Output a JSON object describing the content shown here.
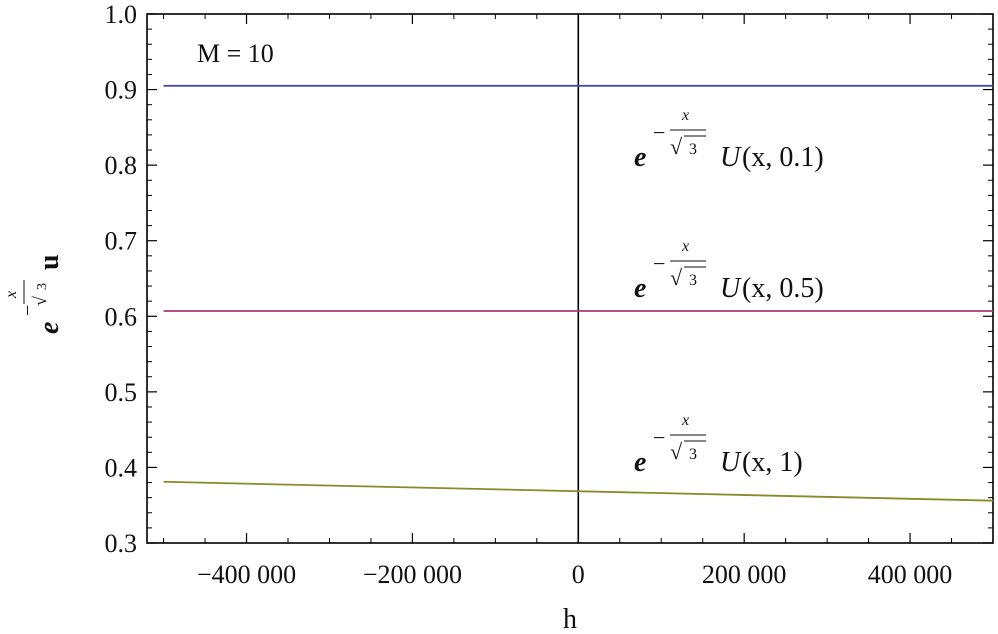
{
  "chart_data": {
    "type": "line",
    "xlabel": "h",
    "ylabel": {
      "base": "e",
      "exp_sign": "−",
      "exp_num": "x",
      "exp_den": "3",
      "suffix": "u"
    },
    "xlim": [
      -520000,
      500000
    ],
    "ylim": [
      0.3,
      1.0
    ],
    "xticks": [
      -400000,
      -200000,
      0,
      200000,
      400000
    ],
    "xtick_labels": [
      "−400 000",
      "−200 000",
      "0",
      "200 000",
      "400 000"
    ],
    "yticks": [
      0.3,
      0.4,
      0.5,
      0.6,
      0.7,
      0.8,
      0.9,
      1.0
    ],
    "ytick_labels": [
      "0.3",
      "0.4",
      "0.5",
      "0.6",
      "0.7",
      "0.8",
      "0.9",
      "1.0"
    ],
    "grid": false,
    "annotation_text": "M = 10",
    "series": [
      {
        "name": "U(x, 0.1)",
        "t_label": "0.1",
        "color": "#4a4aa8",
        "x": [
          -500000,
          500000
        ],
        "y": [
          0.905,
          0.905
        ]
      },
      {
        "name": "U(x, 0.5)",
        "t_label": "0.5",
        "color": "#a83a6e",
        "x": [
          -500000,
          500000
        ],
        "y": [
          0.607,
          0.607
        ]
      },
      {
        "name": "U(x, 1)",
        "t_label": "1",
        "color": "#8a8a2a",
        "x": [
          -500000,
          500000
        ],
        "y": [
          0.381,
          0.356
        ]
      }
    ],
    "curve_labels": [
      {
        "e": "e",
        "minus": "−",
        "num": "x",
        "den": "3",
        "func": "U",
        "args": "(x, 0.1)"
      },
      {
        "e": "e",
        "minus": "−",
        "num": "x",
        "den": "3",
        "func": "U",
        "args": "(x, 0.5)"
      },
      {
        "e": "e",
        "minus": "−",
        "num": "x",
        "den": "3",
        "func": "U",
        "args": "(x, 1)"
      }
    ],
    "axis_line_color": "#000000"
  }
}
